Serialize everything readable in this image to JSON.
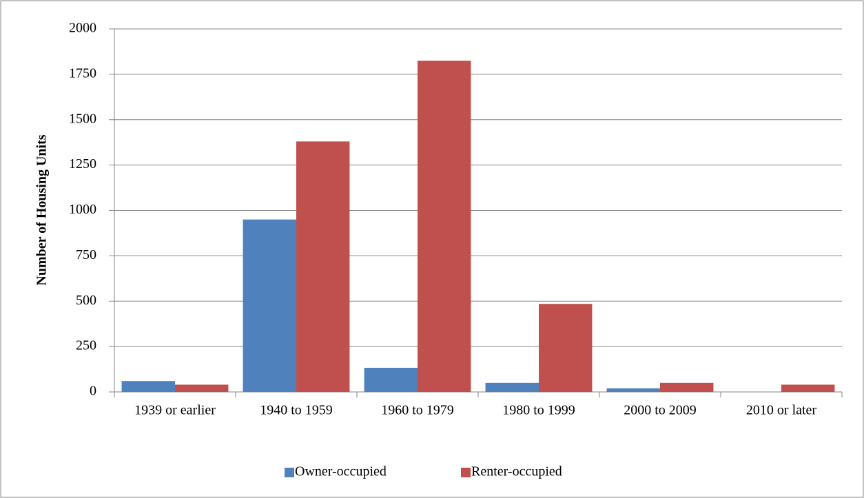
{
  "chart_data": {
    "type": "bar",
    "y_axis_label": "Number of Housing Units",
    "categories": [
      "1939 or earlier",
      "1940 to 1959",
      "1960 to 1979",
      "1980 to 1999",
      "2000 to 2009",
      "2010 or later"
    ],
    "series": [
      {
        "name": "Owner-occupied",
        "color": "#4f81bd",
        "values": [
          60,
          950,
          133,
          50,
          20,
          0
        ]
      },
      {
        "name": "Renter-occupied",
        "color": "#c0504d",
        "values": [
          40,
          1380,
          1825,
          485,
          50,
          40
        ]
      }
    ],
    "ylim": [
      0,
      2000
    ],
    "yticks": [
      0,
      250,
      500,
      750,
      1000,
      1250,
      1500,
      1750,
      2000
    ],
    "grid": true,
    "legend": "bottom"
  }
}
